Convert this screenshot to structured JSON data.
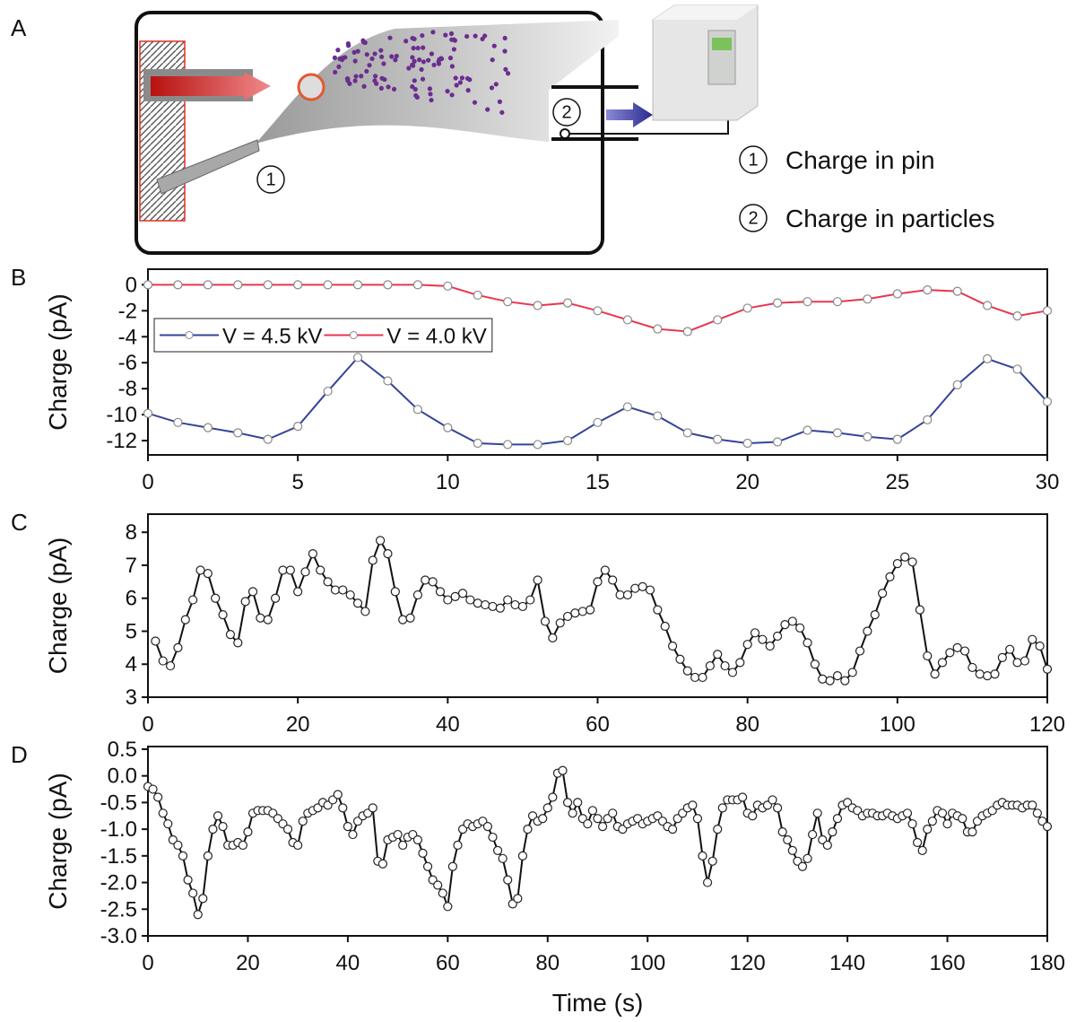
{
  "diagram": {
    "panel_label": "A",
    "markers": [
      "1",
      "2"
    ],
    "legend": [
      {
        "number": "1",
        "text": "Charge in pin"
      },
      {
        "number": "2",
        "text": "Charge in particles"
      }
    ]
  },
  "chart_data": [
    {
      "type": "line",
      "panel_label": "B",
      "y_label": "Charge (pA)",
      "x": [
        0,
        1,
        2,
        3,
        4,
        5,
        6,
        7,
        8,
        9,
        10,
        11,
        12,
        13,
        14,
        15,
        16,
        17,
        18,
        19,
        20,
        21,
        22,
        23,
        24,
        25,
        26,
        27,
        28,
        29,
        30
      ],
      "series": [
        {
          "name": "V = 4.5 kV",
          "color": "#34449a",
          "values": [
            -9.9,
            -10.6,
            -11.0,
            -11.4,
            -11.9,
            -10.9,
            -8.2,
            -5.6,
            -7.4,
            -9.6,
            -11.0,
            -12.2,
            -12.3,
            -12.3,
            -12.0,
            -10.6,
            -9.4,
            -10.1,
            -11.4,
            -11.9,
            -12.2,
            -12.1,
            -11.2,
            -11.4,
            -11.7,
            -11.9,
            -10.4,
            -7.7,
            -5.7,
            -6.5,
            -9.0
          ]
        },
        {
          "name": "V = 4.0 kV",
          "color": "#e8364f",
          "values": [
            0,
            0,
            0,
            0,
            0,
            0,
            0,
            0,
            0,
            0,
            -0.1,
            -0.8,
            -1.3,
            -1.6,
            -1.4,
            -2.0,
            -2.7,
            -3.4,
            -3.6,
            -2.7,
            -1.8,
            -1.4,
            -1.3,
            -1.3,
            -1.1,
            -0.7,
            -0.4,
            -0.5,
            -1.6,
            -2.4,
            -2.0
          ]
        }
      ],
      "xlim": [
        0,
        30
      ],
      "xticks": [
        0,
        5,
        10,
        15,
        20,
        25,
        30
      ],
      "ylim": [
        -13.1,
        1.2
      ],
      "yticks": [
        0,
        -2,
        -4,
        -6,
        -8,
        -10,
        -12
      ],
      "legend": "upper left"
    },
    {
      "type": "line",
      "panel_label": "C",
      "y_label": "Charge (pA)",
      "color": "#111111",
      "x": [
        1,
        2,
        3,
        4,
        5,
        6,
        7,
        8,
        9,
        10,
        11,
        12,
        13,
        14,
        15,
        16,
        17,
        18,
        19,
        20,
        21,
        22,
        23,
        24,
        25,
        26,
        27,
        28,
        29,
        30,
        31,
        32,
        33,
        34,
        35,
        36,
        37,
        38,
        39,
        40,
        41,
        42,
        43,
        44,
        45,
        46,
        47,
        48,
        49,
        50,
        51,
        52,
        53,
        54,
        55,
        56,
        57,
        58,
        59,
        60,
        61,
        62,
        63,
        64,
        65,
        66,
        67,
        68,
        69,
        70,
        71,
        72,
        73,
        74,
        75,
        76,
        77,
        78,
        79,
        80,
        81,
        82,
        83,
        84,
        85,
        86,
        87,
        88,
        89,
        90,
        91,
        92,
        93,
        94,
        95,
        96,
        97,
        98,
        99,
        100,
        101,
        102,
        103,
        104,
        105,
        106,
        107,
        108,
        109,
        110,
        111,
        112,
        113,
        114,
        115,
        116,
        117,
        118,
        119,
        120
      ],
      "values": [
        4.7,
        4.1,
        3.95,
        4.5,
        5.35,
        5.95,
        6.85,
        6.75,
        6.0,
        5.5,
        4.9,
        4.65,
        5.9,
        6.2,
        5.4,
        5.35,
        6.0,
        6.85,
        6.85,
        6.2,
        6.8,
        7.35,
        6.85,
        6.5,
        6.25,
        6.25,
        6.1,
        5.85,
        5.6,
        7.15,
        7.75,
        7.35,
        6.2,
        5.35,
        5.4,
        6.1,
        6.55,
        6.5,
        6.2,
        5.95,
        6.05,
        6.15,
        5.95,
        5.85,
        5.8,
        5.75,
        5.7,
        5.95,
        5.8,
        5.75,
        5.95,
        6.55,
        5.3,
        4.8,
        5.25,
        5.45,
        5.55,
        5.6,
        5.65,
        6.5,
        6.85,
        6.55,
        6.1,
        6.1,
        6.3,
        6.35,
        6.25,
        5.65,
        5.15,
        4.55,
        4.15,
        3.8,
        3.6,
        3.6,
        3.95,
        4.3,
        3.95,
        3.75,
        4.05,
        4.6,
        4.95,
        4.75,
        4.55,
        4.85,
        5.2,
        5.3,
        5.1,
        4.65,
        4.0,
        3.55,
        3.5,
        3.65,
        3.5,
        3.75,
        4.4,
        5.0,
        5.5,
        6.15,
        6.65,
        7.05,
        7.25,
        7.1,
        5.65,
        4.25,
        3.7,
        4.05,
        4.35,
        4.5,
        4.4,
        3.9,
        3.7,
        3.65,
        3.7,
        4.2,
        4.45,
        4.05,
        4.1,
        4.75,
        4.55,
        3.85
      ],
      "xlim": [
        0,
        120
      ],
      "xticks": [
        0,
        20,
        40,
        60,
        80,
        100,
        120
      ],
      "ylim": [
        3,
        8.55
      ],
      "yticks": [
        3,
        4,
        5,
        6,
        7,
        8
      ]
    },
    {
      "type": "line",
      "panel_label": "D",
      "y_label": "Charge (pA)",
      "x_label": "Time (s)",
      "color": "#111111",
      "x": [
        0,
        1,
        2,
        3,
        4,
        5,
        6,
        7,
        8,
        9,
        10,
        11,
        12,
        13,
        14,
        15,
        16,
        17,
        18,
        19,
        20,
        21,
        22,
        23,
        24,
        25,
        26,
        27,
        28,
        29,
        30,
        31,
        32,
        33,
        34,
        35,
        36,
        37,
        38,
        39,
        40,
        41,
        42,
        43,
        44,
        45,
        46,
        47,
        48,
        49,
        50,
        51,
        52,
        53,
        54,
        55,
        56,
        57,
        58,
        59,
        60,
        61,
        62,
        63,
        64,
        65,
        66,
        67,
        68,
        69,
        70,
        71,
        72,
        73,
        74,
        75,
        76,
        77,
        78,
        79,
        80,
        81,
        82,
        83,
        84,
        85,
        86,
        87,
        88,
        89,
        90,
        91,
        92,
        93,
        94,
        95,
        96,
        97,
        98,
        99,
        100,
        101,
        102,
        103,
        104,
        105,
        106,
        107,
        108,
        109,
        110,
        111,
        112,
        113,
        114,
        115,
        116,
        117,
        118,
        119,
        120,
        121,
        122,
        123,
        124,
        125,
        126,
        127,
        128,
        129,
        130,
        131,
        132,
        133,
        134,
        135,
        136,
        137,
        138,
        139,
        140,
        141,
        142,
        143,
        144,
        145,
        146,
        147,
        148,
        149,
        150,
        151,
        152,
        153,
        154,
        155,
        156,
        157,
        158,
        159,
        160,
        161,
        162,
        163,
        164,
        165,
        166,
        167,
        168,
        169,
        170,
        171,
        172,
        173,
        174,
        175,
        176,
        177,
        178,
        179,
        180
      ],
      "values": [
        -0.2,
        -0.25,
        -0.4,
        -0.7,
        -0.9,
        -1.2,
        -1.3,
        -1.5,
        -1.95,
        -2.2,
        -2.6,
        -2.3,
        -1.5,
        -1.0,
        -0.75,
        -0.95,
        -1.3,
        -1.3,
        -1.25,
        -1.3,
        -1.05,
        -0.7,
        -0.65,
        -0.65,
        -0.65,
        -0.7,
        -0.8,
        -0.9,
        -1.0,
        -1.25,
        -1.3,
        -0.85,
        -0.7,
        -0.65,
        -0.6,
        -0.5,
        -0.55,
        -0.45,
        -0.35,
        -0.6,
        -0.95,
        -1.1,
        -0.85,
        -0.75,
        -0.7,
        -0.6,
        -1.6,
        -1.65,
        -1.2,
        -1.15,
        -1.1,
        -1.3,
        -1.15,
        -1.1,
        -1.2,
        -1.45,
        -1.7,
        -1.95,
        -2.05,
        -2.2,
        -2.45,
        -1.7,
        -1.3,
        -1.0,
        -0.9,
        -0.95,
        -0.9,
        -0.85,
        -0.95,
        -1.15,
        -1.4,
        -1.55,
        -1.95,
        -2.4,
        -2.3,
        -1.5,
        -1.0,
        -0.75,
        -0.85,
        -0.8,
        -0.6,
        -0.4,
        0.05,
        0.1,
        -0.5,
        -0.7,
        -0.5,
        -0.8,
        -0.9,
        -0.65,
        -0.8,
        -0.95,
        -0.8,
        -0.7,
        -0.95,
        -1.0,
        -0.9,
        -0.85,
        -0.8,
        -0.9,
        -0.85,
        -0.8,
        -0.75,
        -0.85,
        -0.95,
        -1.0,
        -0.8,
        -0.7,
        -0.6,
        -0.55,
        -0.8,
        -1.5,
        -2.0,
        -1.6,
        -1.0,
        -0.6,
        -0.45,
        -0.45,
        -0.45,
        -0.4,
        -0.7,
        -0.75,
        -0.55,
        -0.6,
        -0.55,
        -0.45,
        -0.6,
        -1.05,
        -1.2,
        -1.4,
        -1.6,
        -1.7,
        -1.55,
        -1.1,
        -0.7,
        -1.2,
        -1.3,
        -1.05,
        -0.8,
        -0.55,
        -0.5,
        -0.6,
        -0.65,
        -0.75,
        -0.7,
        -0.7,
        -0.75,
        -0.75,
        -0.7,
        -0.75,
        -0.8,
        -0.75,
        -0.7,
        -0.9,
        -1.25,
        -1.4,
        -1.0,
        -0.85,
        -0.65,
        -0.7,
        -0.9,
        -0.7,
        -0.75,
        -0.8,
        -1.05,
        -1.05,
        -0.85,
        -0.75,
        -0.7,
        -0.65,
        -0.55,
        -0.5,
        -0.55,
        -0.55,
        -0.55,
        -0.6,
        -0.55,
        -0.55,
        -0.7,
        -0.85,
        -0.95
      ],
      "xlim": [
        0,
        180
      ],
      "xticks": [
        0,
        20,
        40,
        60,
        80,
        100,
        120,
        140,
        160,
        180
      ],
      "ylim": [
        -3.0,
        0.55
      ],
      "yticks": [
        0.5,
        {
          "value": 0,
          "label": "0.0"
        },
        -0.5,
        {
          "value": -1,
          "label": "-1.0"
        },
        -1.5,
        {
          "value": -2,
          "label": "-2.0"
        },
        -2.5,
        {
          "value": -3,
          "label": "-3.0"
        }
      ]
    }
  ]
}
